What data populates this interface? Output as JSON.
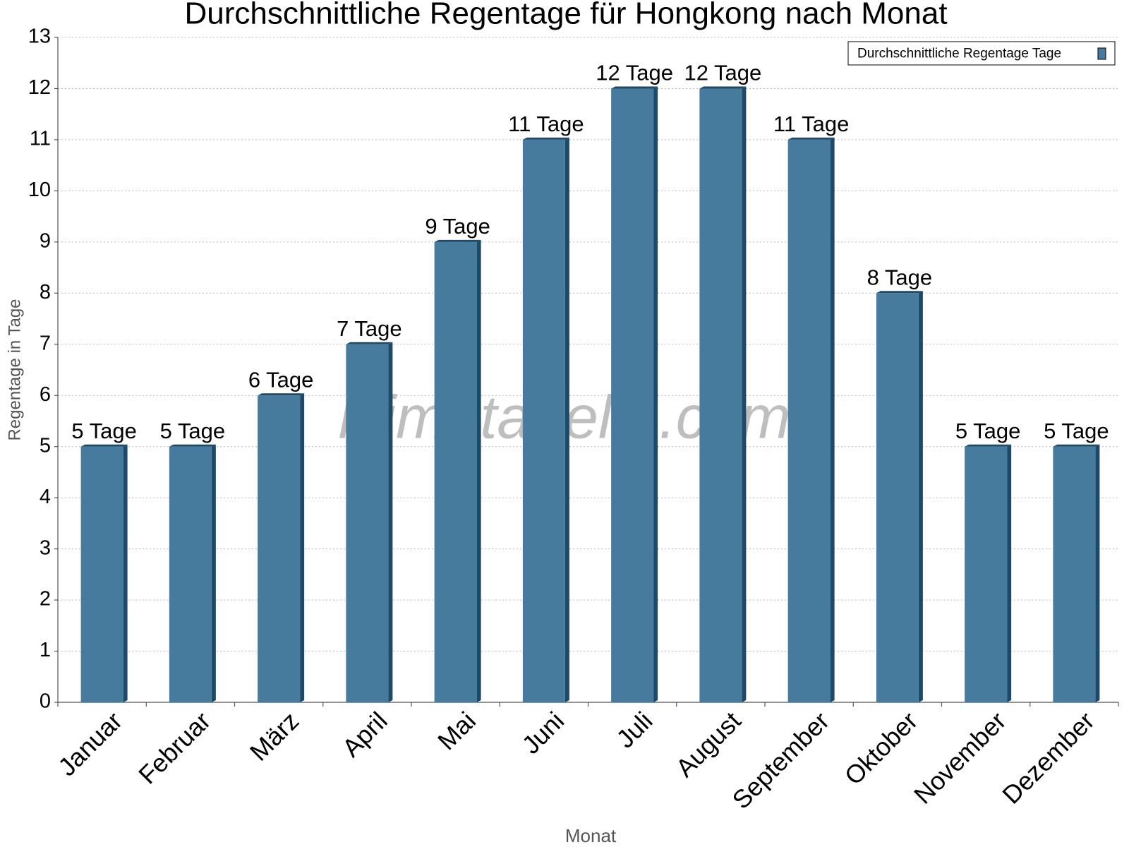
{
  "chart_data": {
    "type": "bar",
    "title": "Durchschnittliche Regentage für Hongkong nach Monat",
    "watermark": "klimatabelle.com",
    "x_label": "Monat",
    "y_label": "Regentage in Tage",
    "categories": [
      "Januar",
      "Februar",
      "März",
      "April",
      "Mai",
      "Juni",
      "Juli",
      "August",
      "September",
      "Oktober",
      "November",
      "Dezember"
    ],
    "series": [
      {
        "name": "Durchschnittliche Regentage Tage",
        "color": "#467b9d",
        "values": [
          5,
          5,
          6,
          7,
          9,
          11,
          12,
          12,
          11,
          8,
          5,
          5
        ],
        "value_labels": [
          "5 Tage",
          "5 Tage",
          "6 Tage",
          "7 Tage",
          "9 Tage",
          "11 Tage",
          "12 Tage",
          "12 Tage",
          "11 Tage",
          "8 Tage",
          "5 Tage",
          "5 Tage"
        ]
      }
    ],
    "ylim": [
      0,
      13
    ],
    "yticks": [
      0,
      1,
      2,
      3,
      4,
      5,
      6,
      7,
      8,
      9,
      10,
      11,
      12,
      13
    ],
    "grid": true,
    "legend": "top-right"
  }
}
